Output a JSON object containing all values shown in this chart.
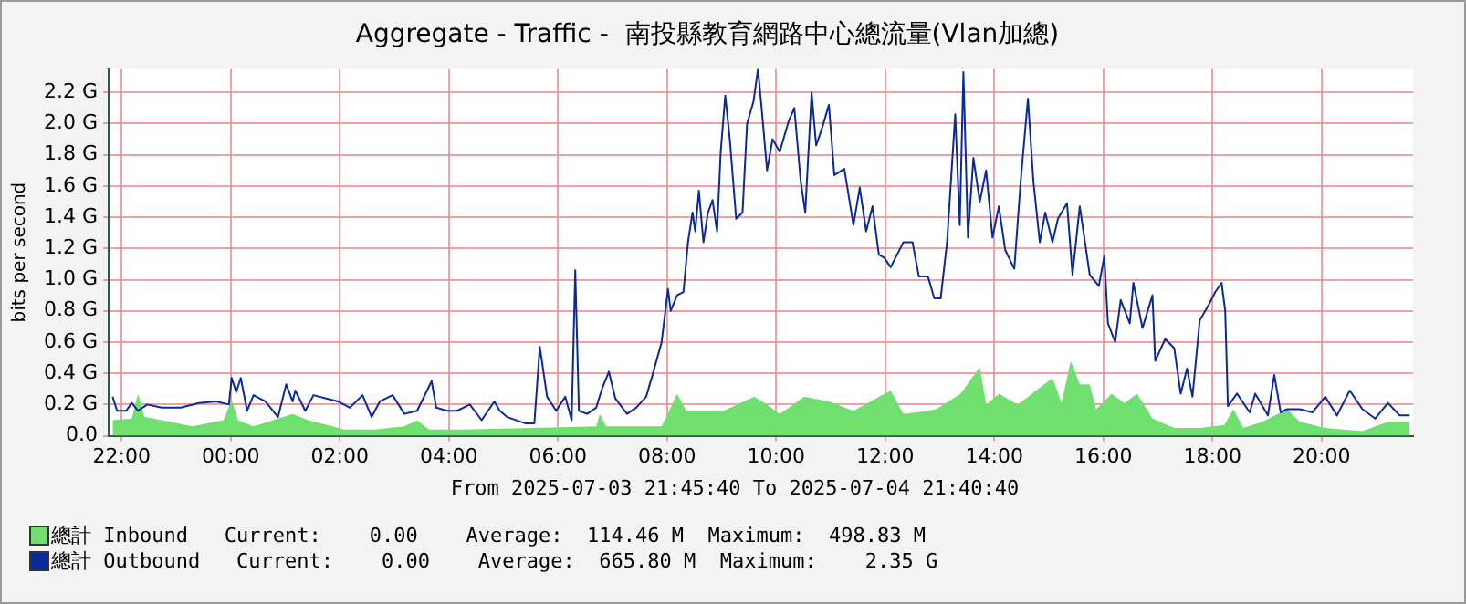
{
  "chart_data": {
    "type": "line",
    "title": "Aggregate - Traffic -  南投縣教育網路中心總流量(Vlan加總)",
    "ylabel": "bits per second",
    "xlim": [
      "2025-07-03T21:45:40",
      "2025-07-04T21:40:40"
    ],
    "xticks": [
      {
        "value": "2025-07-03T22:00",
        "label": "22:00"
      },
      {
        "value": "2025-07-04T00:00",
        "label": "00:00"
      },
      {
        "value": "2025-07-04T02:00",
        "label": "02:00"
      },
      {
        "value": "2025-07-04T04:00",
        "label": "04:00"
      },
      {
        "value": "2025-07-04T06:00",
        "label": "06:00"
      },
      {
        "value": "2025-07-04T08:00",
        "label": "08:00"
      },
      {
        "value": "2025-07-04T10:00",
        "label": "10:00"
      },
      {
        "value": "2025-07-04T12:00",
        "label": "12:00"
      },
      {
        "value": "2025-07-04T14:00",
        "label": "14:00"
      },
      {
        "value": "2025-07-04T16:00",
        "label": "16:00"
      },
      {
        "value": "2025-07-04T18:00",
        "label": "18:00"
      },
      {
        "value": "2025-07-04T20:00",
        "label": "20:00"
      }
    ],
    "ylim": [
      0,
      2.35
    ],
    "yticks": [
      {
        "value": 0,
        "label": "0.0"
      },
      {
        "value": 0.2,
        "label": "0.2 G"
      },
      {
        "value": 0.4,
        "label": "0.4 G"
      },
      {
        "value": 0.6,
        "label": "0.6 G"
      },
      {
        "value": 0.8,
        "label": "0.8 G"
      },
      {
        "value": 1.0,
        "label": "1.0 G"
      },
      {
        "value": 1.2,
        "label": "1.2 G"
      },
      {
        "value": 1.4,
        "label": "1.4 G"
      },
      {
        "value": 1.6,
        "label": "1.6 G"
      },
      {
        "value": 1.8,
        "label": "1.8 G"
      },
      {
        "value": 2.0,
        "label": "2.0 G"
      },
      {
        "value": 2.2,
        "label": "2.2 G"
      }
    ],
    "grid": true,
    "legend": "bottom left",
    "annotations": [
      "From 2025-07-03 21:45:40 To 2025-07-04 21:40:40",
      "Current:    0.00    Average:  114.46 M  Maximum:  498.83 M",
      "Current:    0.00    Average:  665.80 M  Maximum:    2.35 G"
    ],
    "series": [
      {
        "name": "總計 Inbound",
        "type": "area",
        "color": "#6fe06f",
        "x": [
          "2025-07-03T21:50",
          "2025-07-03T22:11",
          "2025-07-03T22:18",
          "2025-07-03T22:25",
          "2025-07-03T22:44",
          "2025-07-03T23:18",
          "2025-07-03T23:52",
          "2025-07-04T00:01",
          "2025-07-04T00:08",
          "2025-07-04T00:25",
          "2025-07-04T00:58",
          "2025-07-04T01:08",
          "2025-07-04T01:25",
          "2025-07-04T01:52",
          "2025-07-04T02:05",
          "2025-07-04T02:38",
          "2025-07-04T03:11",
          "2025-07-04T03:25",
          "2025-07-04T03:38",
          "2025-07-04T04:18",
          "2025-07-04T06:42",
          "2025-07-04T06:46",
          "2025-07-04T06:53",
          "2025-07-04T07:54",
          "2025-07-04T08:04",
          "2025-07-04T08:11",
          "2025-07-04T08:21",
          "2025-07-04T08:41",
          "2025-07-04T09:02",
          "2025-07-04T09:36",
          "2025-07-04T09:50",
          "2025-07-04T10:04",
          "2025-07-04T10:31",
          "2025-07-04T10:58",
          "2025-07-04T11:25",
          "2025-07-04T12:06",
          "2025-07-04T12:20",
          "2025-07-04T12:47",
          "2025-07-04T12:56",
          "2025-07-04T13:23",
          "2025-07-04T13:44",
          "2025-07-04T13:51",
          "2025-07-04T14:05",
          "2025-07-04T14:26",
          "2025-07-04T14:46",
          "2025-07-04T15:04",
          "2025-07-04T15:14",
          "2025-07-04T15:24",
          "2025-07-04T15:34",
          "2025-07-04T15:45",
          "2025-07-04T15:52",
          "2025-07-04T16:09",
          "2025-07-04T16:23",
          "2025-07-04T16:37",
          "2025-07-04T16:54",
          "2025-07-04T17:18",
          "2025-07-04T17:46",
          "2025-07-04T18:13",
          "2025-07-04T18:23",
          "2025-07-04T18:34",
          "2025-07-04T18:55",
          "2025-07-04T19:22",
          "2025-07-04T19:36",
          "2025-07-04T20:04",
          "2025-07-04T20:45",
          "2025-07-04T21:13",
          "2025-07-04T21:37"
        ],
        "values": [
          0.1,
          0.11,
          0.27,
          0.12,
          0.1,
          0.06,
          0.1,
          0.23,
          0.1,
          0.06,
          0.12,
          0.14,
          0.1,
          0.06,
          0.04,
          0.04,
          0.06,
          0.1,
          0.04,
          0.04,
          0.06,
          0.14,
          0.06,
          0.06,
          0.18,
          0.27,
          0.16,
          0.16,
          0.16,
          0.25,
          0.2,
          0.14,
          0.25,
          0.22,
          0.16,
          0.29,
          0.14,
          0.16,
          0.17,
          0.27,
          0.44,
          0.2,
          0.27,
          0.2,
          0.29,
          0.37,
          0.21,
          0.48,
          0.33,
          0.33,
          0.17,
          0.27,
          0.21,
          0.27,
          0.11,
          0.05,
          0.05,
          0.07,
          0.17,
          0.05,
          0.09,
          0.17,
          0.09,
          0.05,
          0.03,
          0.09,
          0.09
        ]
      },
      {
        "name": "總計 Outbound",
        "type": "line",
        "color": "#0a2a9a",
        "x": [
          "2025-07-03T21:50",
          "2025-07-03T21:55",
          "2025-07-03T22:05",
          "2025-07-03T22:11",
          "2025-07-03T22:18",
          "2025-07-03T22:28",
          "2025-07-03T22:44",
          "2025-07-03T23:05",
          "2025-07-03T23:25",
          "2025-07-03T23:44",
          "2025-07-03T23:58",
          "2025-07-04T00:01",
          "2025-07-04T00:06",
          "2025-07-04T00:11",
          "2025-07-04T00:18",
          "2025-07-04T00:25",
          "2025-07-04T00:38",
          "2025-07-04T00:52",
          "2025-07-04T01:01",
          "2025-07-04T01:08",
          "2025-07-04T01:11",
          "2025-07-04T01:22",
          "2025-07-04T01:31",
          "2025-07-04T01:44",
          "2025-07-04T01:58",
          "2025-07-04T02:11",
          "2025-07-04T02:25",
          "2025-07-04T02:35",
          "2025-07-04T02:44",
          "2025-07-04T02:58",
          "2025-07-04T03:11",
          "2025-07-04T03:25",
          "2025-07-04T03:41",
          "2025-07-04T03:46",
          "2025-07-04T03:58",
          "2025-07-04T04:09",
          "2025-07-04T04:23",
          "2025-07-04T04:36",
          "2025-07-04T04:50",
          "2025-07-04T04:56",
          "2025-07-04T05:04",
          "2025-07-04T05:24",
          "2025-07-04T05:34",
          "2025-07-04T05:40",
          "2025-07-04T05:48",
          "2025-07-04T05:58",
          "2025-07-04T06:08",
          "2025-07-04T06:15",
          "2025-07-04T06:19",
          "2025-07-04T06:23",
          "2025-07-04T06:32",
          "2025-07-04T06:42",
          "2025-07-04T06:49",
          "2025-07-04T06:56",
          "2025-07-04T07:03",
          "2025-07-04T07:16",
          "2025-07-04T07:26",
          "2025-07-04T07:37",
          "2025-07-04T07:44",
          "2025-07-04T07:54",
          "2025-07-04T08:01",
          "2025-07-04T08:04",
          "2025-07-04T08:11",
          "2025-07-04T08:18",
          "2025-07-04T08:23",
          "2025-07-04T08:28",
          "2025-07-04T08:31",
          "2025-07-04T08:35",
          "2025-07-04T08:40",
          "2025-07-04T08:45",
          "2025-07-04T08:50",
          "2025-07-04T08:55",
          "2025-07-04T08:59",
          "2025-07-04T09:04",
          "2025-07-04T09:09",
          "2025-07-04T09:16",
          "2025-07-04T09:23",
          "2025-07-04T09:28",
          "2025-07-04T09:35",
          "2025-07-04T09:40",
          "2025-07-04T09:44",
          "2025-07-04T09:50",
          "2025-07-04T09:56",
          "2025-07-04T10:04",
          "2025-07-04T10:14",
          "2025-07-04T10:20",
          "2025-07-04T10:27",
          "2025-07-04T10:32",
          "2025-07-04T10:39",
          "2025-07-04T10:44",
          "2025-07-04T10:51",
          "2025-07-04T10:58",
          "2025-07-04T11:04",
          "2025-07-04T11:15",
          "2025-07-04T11:25",
          "2025-07-04T11:32",
          "2025-07-04T11:39",
          "2025-07-04T11:46",
          "2025-07-04T11:53",
          "2025-07-04T11:59",
          "2025-07-04T12:06",
          "2025-07-04T12:13",
          "2025-07-04T12:20",
          "2025-07-04T12:30",
          "2025-07-04T12:37",
          "2025-07-04T12:47",
          "2025-07-04T12:54",
          "2025-07-04T13:01",
          "2025-07-04T13:08",
          "2025-07-04T13:17",
          "2025-07-04T13:22",
          "2025-07-04T13:26",
          "2025-07-04T13:31",
          "2025-07-04T13:37",
          "2025-07-04T13:44",
          "2025-07-04T13:51",
          "2025-07-04T13:58",
          "2025-07-04T14:05",
          "2025-07-04T14:12",
          "2025-07-04T14:22",
          "2025-07-04T14:29",
          "2025-07-04T14:37",
          "2025-07-04T14:43",
          "2025-07-04T14:50",
          "2025-07-04T14:56",
          "2025-07-04T15:04",
          "2025-07-04T15:10",
          "2025-07-04T15:20",
          "2025-07-04T15:26",
          "2025-07-04T15:34",
          "2025-07-04T15:45",
          "2025-07-04T15:55",
          "2025-07-04T16:01",
          "2025-07-04T16:05",
          "2025-07-04T16:13",
          "2025-07-04T16:19",
          "2025-07-04T16:29",
          "2025-07-04T16:33",
          "2025-07-04T16:43",
          "2025-07-04T16:54",
          "2025-07-04T16:57",
          "2025-07-04T17:08",
          "2025-07-04T17:18",
          "2025-07-04T17:25",
          "2025-07-04T17:32",
          "2025-07-04T17:38",
          "2025-07-04T17:46",
          "2025-07-04T17:56",
          "2025-07-04T18:03",
          "2025-07-04T18:10",
          "2025-07-04T18:14",
          "2025-07-04T18:17",
          "2025-07-04T18:27",
          "2025-07-04T18:41",
          "2025-07-04T18:47",
          "2025-07-04T19:01",
          "2025-07-04T19:08",
          "2025-07-04T19:15",
          "2025-07-04T19:22",
          "2025-07-04T19:36",
          "2025-07-04T19:50",
          "2025-07-04T20:04",
          "2025-07-04T20:17",
          "2025-07-04T20:31",
          "2025-07-04T20:45",
          "2025-07-04T20:59",
          "2025-07-04T21:13",
          "2025-07-04T21:26",
          "2025-07-04T21:37"
        ],
        "values": [
          0.25,
          0.16,
          0.16,
          0.21,
          0.16,
          0.2,
          0.18,
          0.18,
          0.21,
          0.22,
          0.2,
          0.37,
          0.28,
          0.37,
          0.16,
          0.26,
          0.22,
          0.12,
          0.33,
          0.22,
          0.29,
          0.16,
          0.26,
          0.24,
          0.22,
          0.18,
          0.26,
          0.12,
          0.22,
          0.26,
          0.14,
          0.16,
          0.35,
          0.18,
          0.16,
          0.16,
          0.2,
          0.1,
          0.22,
          0.16,
          0.12,
          0.08,
          0.08,
          0.57,
          0.25,
          0.16,
          0.25,
          0.1,
          1.06,
          0.16,
          0.14,
          0.18,
          0.31,
          0.41,
          0.24,
          0.14,
          0.18,
          0.25,
          0.39,
          0.6,
          0.94,
          0.8,
          0.9,
          0.92,
          1.24,
          1.43,
          1.31,
          1.57,
          1.24,
          1.43,
          1.51,
          1.31,
          1.82,
          2.18,
          1.9,
          1.39,
          1.43,
          2.0,
          2.14,
          2.35,
          2.1,
          1.7,
          1.9,
          1.82,
          2.02,
          2.1,
          1.63,
          1.43,
          2.2,
          1.86,
          1.98,
          2.12,
          1.67,
          1.71,
          1.35,
          1.59,
          1.31,
          1.47,
          1.16,
          1.14,
          1.08,
          1.16,
          1.24,
          1.24,
          1.02,
          1.02,
          0.88,
          0.88,
          1.24,
          2.06,
          1.35,
          2.33,
          1.27,
          1.78,
          1.5,
          1.7,
          1.27,
          1.47,
          1.19,
          1.07,
          1.63,
          2.16,
          1.63,
          1.24,
          1.43,
          1.24,
          1.39,
          1.49,
          1.03,
          1.47,
          1.03,
          0.96,
          1.15,
          0.72,
          0.6,
          0.87,
          0.72,
          0.98,
          0.69,
          0.9,
          0.48,
          0.62,
          0.56,
          0.27,
          0.43,
          0.25,
          0.74,
          0.84,
          0.92,
          0.98,
          0.8,
          0.19,
          0.27,
          0.15,
          0.27,
          0.13,
          0.39,
          0.15,
          0.17,
          0.17,
          0.15,
          0.25,
          0.13,
          0.29,
          0.17,
          0.11,
          0.21,
          0.13,
          0.13
        ]
      }
    ]
  }
}
